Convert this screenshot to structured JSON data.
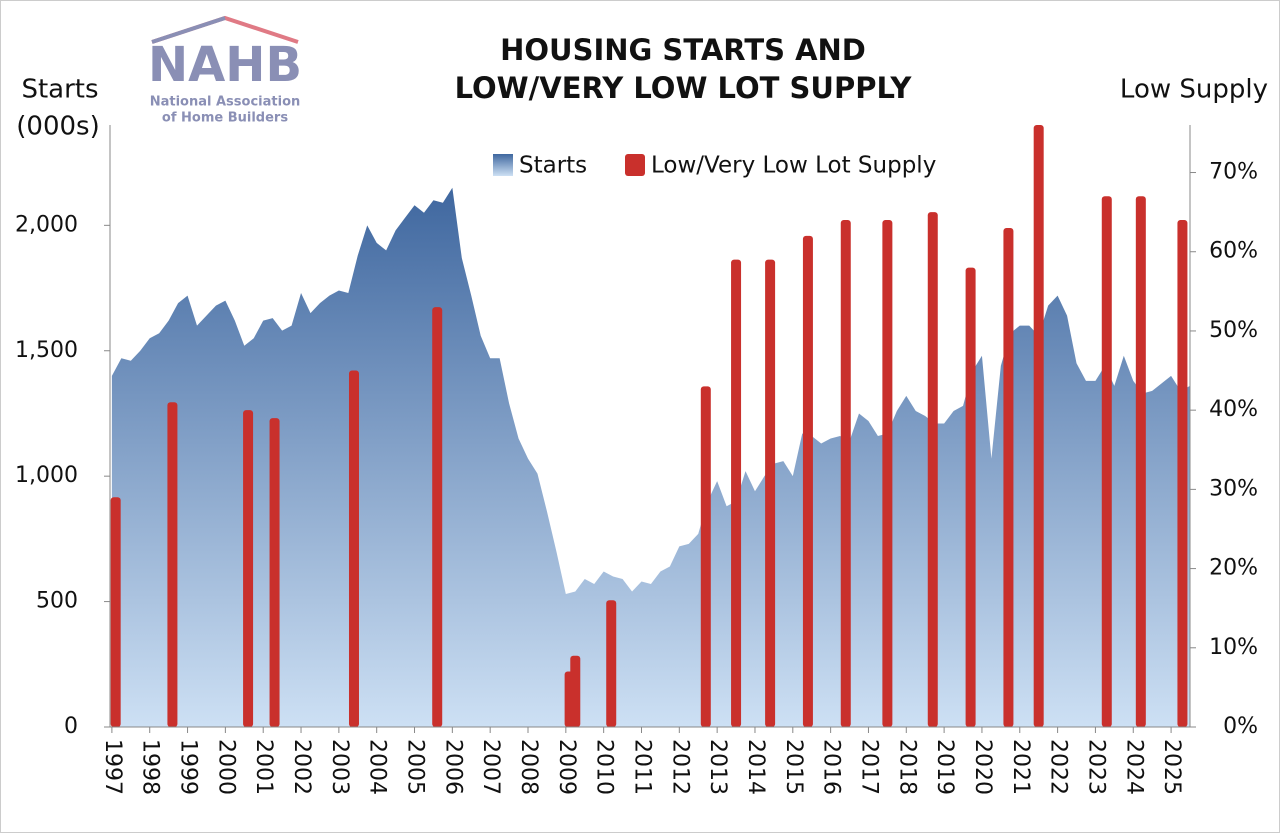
{
  "logo": {
    "text": "NAHB",
    "lines": [
      "National Association",
      "of Home Builders"
    ]
  },
  "chart_data": {
    "type": "combo",
    "title": [
      "HOUSING STARTS AND",
      "LOW/VERY LOW LOT SUPPLY"
    ],
    "ylabel": [
      "Starts",
      "(000s)"
    ],
    "y2label": "Low Supply",
    "xlim": [
      1996.95,
      2025.5
    ],
    "ylim": [
      0,
      2400
    ],
    "y2lim": [
      0,
      76
    ],
    "xticks": [
      1997,
      1998,
      1999,
      2000,
      2001,
      2002,
      2003,
      2004,
      2005,
      2006,
      2007,
      2008,
      2009,
      2010,
      2011,
      2012,
      2013,
      2014,
      2015,
      2016,
      2017,
      2018,
      2019,
      2020,
      2021,
      2022,
      2023,
      2024,
      2025
    ],
    "yticks": [
      0,
      500,
      {
        "value": 1000,
        "label": "1,000"
      },
      {
        "value": 1500,
        "label": "1,500"
      },
      {
        "value": 2000,
        "label": "2,000"
      }
    ],
    "y2ticks": [
      {
        "value": 0,
        "label": "0%"
      },
      {
        "value": 10,
        "label": "10%"
      },
      {
        "value": 20,
        "label": "20%"
      },
      {
        "value": 30,
        "label": "30%"
      },
      {
        "value": 40,
        "label": "40%"
      },
      {
        "value": 50,
        "label": "50%"
      },
      {
        "value": 60,
        "label": "60%"
      },
      {
        "value": 70,
        "label": "70%"
      }
    ],
    "series": [
      {
        "name": "Starts",
        "type": "area",
        "color": "#4a72a8",
        "x": [
          1997,
          1997.25,
          1997.5,
          1997.75,
          1998,
          1998.25,
          1998.5,
          1998.75,
          1999,
          1999.25,
          1999.5,
          1999.75,
          2000,
          2000.25,
          2000.5,
          2000.75,
          2001,
          2001.25,
          2001.5,
          2001.75,
          2002,
          2002.25,
          2002.5,
          2002.75,
          2003,
          2003.25,
          2003.5,
          2003.75,
          2004,
          2004.25,
          2004.5,
          2004.75,
          2005,
          2005.25,
          2005.5,
          2005.75,
          2006,
          2006.25,
          2006.5,
          2006.75,
          2007,
          2007.25,
          2007.5,
          2007.75,
          2008,
          2008.25,
          2008.5,
          2008.75,
          2009,
          2009.25,
          2009.5,
          2009.75,
          2010,
          2010.25,
          2010.5,
          2010.75,
          2011,
          2011.25,
          2011.5,
          2011.75,
          2012,
          2012.25,
          2012.5,
          2012.75,
          2013,
          2013.25,
          2013.5,
          2013.75,
          2014,
          2014.25,
          2014.5,
          2014.75,
          2015,
          2015.25,
          2015.5,
          2015.75,
          2016,
          2016.25,
          2016.5,
          2016.75,
          2017,
          2017.25,
          2017.5,
          2017.75,
          2018,
          2018.25,
          2018.5,
          2018.75,
          2019,
          2019.25,
          2019.5,
          2019.75,
          2020,
          2020.25,
          2020.5,
          2020.75,
          2021,
          2021.25,
          2021.5,
          2021.75,
          2022,
          2022.25,
          2022.5,
          2022.75,
          2023,
          2023.25,
          2023.5,
          2023.75,
          2024,
          2024.25,
          2024.5,
          2024.75,
          2025,
          2025.25,
          2025.5
        ],
        "values": [
          1400,
          1470,
          1460,
          1500,
          1550,
          1570,
          1620,
          1690,
          1720,
          1600,
          1640,
          1680,
          1700,
          1620,
          1520,
          1550,
          1620,
          1630,
          1580,
          1600,
          1730,
          1650,
          1690,
          1720,
          1740,
          1730,
          1880,
          2000,
          1930,
          1900,
          1980,
          2030,
          2080,
          2050,
          2100,
          2090,
          2150,
          1870,
          1720,
          1560,
          1470,
          1470,
          1290,
          1150,
          1070,
          1010,
          860,
          700,
          530,
          540,
          590,
          570,
          620,
          600,
          590,
          540,
          580,
          570,
          620,
          640,
          720,
          730,
          770,
          900,
          980,
          880,
          900,
          1020,
          940,
          1000,
          1050,
          1060,
          1000,
          1170,
          1160,
          1130,
          1150,
          1160,
          1140,
          1250,
          1220,
          1160,
          1170,
          1260,
          1320,
          1260,
          1240,
          1210,
          1210,
          1260,
          1280,
          1420,
          1480,
          1070,
          1440,
          1570,
          1600,
          1600,
          1560,
          1680,
          1720,
          1640,
          1450,
          1380,
          1380,
          1440,
          1360,
          1480,
          1380,
          1330,
          1340,
          1370,
          1400,
          1340,
          1360
        ]
      },
      {
        "name": "Low/Very Low Lot Supply",
        "type": "bar",
        "axis": "y2",
        "color": "#c9302c",
        "x": [
          1997.1,
          1998.6,
          2000.6,
          2001.3,
          2003.4,
          2005.6,
          2009.1,
          2009.25,
          2010.2,
          2012.7,
          2013.5,
          2014.4,
          2015.4,
          2016.4,
          2017.5,
          2018.7,
          2019.7,
          2020.7,
          2021.5,
          2023.3,
          2024.2,
          2025.3
        ],
        "values": [
          29,
          41,
          40,
          39,
          45,
          53,
          7,
          9,
          16,
          43,
          59,
          59,
          62,
          64,
          64,
          65,
          58,
          63,
          76,
          67,
          67,
          64
        ]
      }
    ]
  }
}
